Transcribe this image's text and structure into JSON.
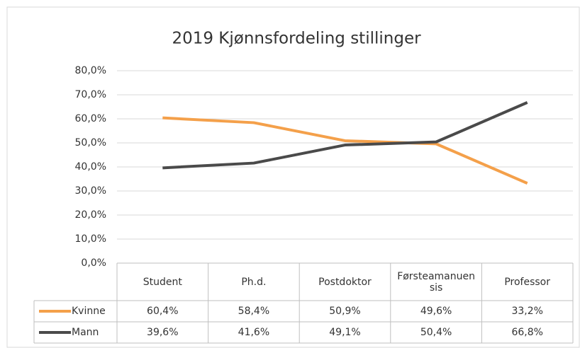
{
  "chart_data": {
    "type": "line",
    "title": "2019 Kjønnsfordeling stillinger",
    "categories": [
      "Student",
      "Ph.d.",
      "Postdoktor",
      "Førsteamanuensis",
      "Professor"
    ],
    "series": [
      {
        "name": "Kvinne",
        "color": "#f4a04a",
        "values": [
          60.4,
          58.4,
          50.9,
          49.6,
          33.2
        ],
        "value_labels": [
          "60,4%",
          "58,4%",
          "50,9%",
          "49,6%",
          "33,2%"
        ]
      },
      {
        "name": "Mann",
        "color": "#4a4a4a",
        "values": [
          39.6,
          41.6,
          49.1,
          50.4,
          66.8
        ],
        "value_labels": [
          "39,6%",
          "41,6%",
          "49,1%",
          "50,4%",
          "66,8%"
        ]
      }
    ],
    "ylim": [
      0,
      80
    ],
    "yticks": [
      {
        "value": 0,
        "label": "0,0%"
      },
      {
        "value": 10,
        "label": "10,0%"
      },
      {
        "value": 20,
        "label": "20,0%"
      },
      {
        "value": 30,
        "label": "30,0%"
      },
      {
        "value": 40,
        "label": "40,0%"
      },
      {
        "value": 50,
        "label": "50,0%"
      },
      {
        "value": 60,
        "label": "60,0%"
      },
      {
        "value": 70,
        "label": "70,0%"
      },
      {
        "value": 80,
        "label": "80,0%"
      }
    ],
    "grid": true
  }
}
